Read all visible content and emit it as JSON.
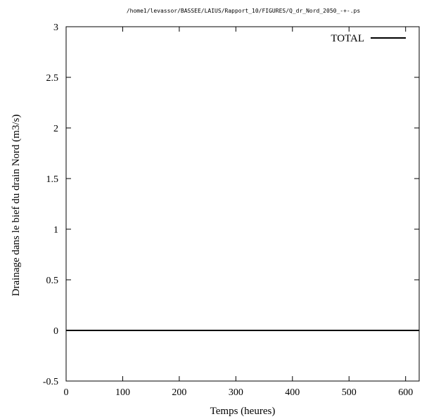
{
  "chart_data": {
    "type": "line",
    "title": "/home1/levassor/BASSEE/LAIUS/Rapport_10/FIGURES/Q_dr_Nord_2050_-+-.ps",
    "xlabel": "Temps (heures)",
    "ylabel": "Drainage dans le bief du drain Nord (m3/s)",
    "xlim": [
      0,
      624
    ],
    "ylim": [
      -0.5,
      3
    ],
    "x_ticks": [
      0,
      100,
      200,
      300,
      400,
      500,
      600
    ],
    "y_ticks": [
      -0.5,
      0,
      0.5,
      1,
      1.5,
      2,
      2.5,
      3
    ],
    "x_tick_labels": [
      "0",
      "100",
      "200",
      "300",
      "400",
      "500",
      "600"
    ],
    "y_tick_labels": [
      "-0.5",
      "0",
      "0.5",
      "1",
      "1.5",
      "2",
      "2.5",
      "3"
    ],
    "grid": false,
    "legend_position": "top-right",
    "series": [
      {
        "name": "TOTAL",
        "color": "#000000",
        "x": [
          0,
          624
        ],
        "y": [
          0,
          0
        ]
      }
    ]
  }
}
